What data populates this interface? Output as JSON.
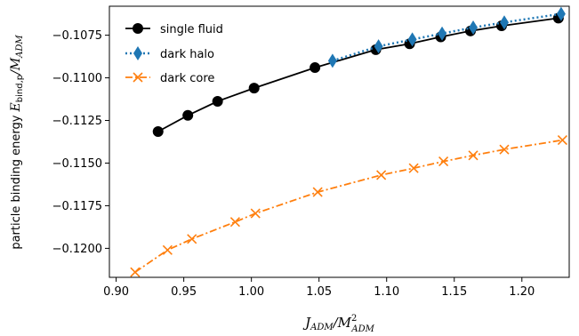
{
  "chart_data": {
    "type": "line",
    "title": "",
    "xlabel": "J_ADM / M_ADM^2",
    "ylabel": "particle binding energy E_bind,p / M_ADM",
    "xlabel_main": "J",
    "xlabel_sub": "ADM",
    "xlabel_den": "/M",
    "xlabel_den_sub": "ADM",
    "xlabel_den_sup": "2",
    "ylabel_prefix": "particle binding energy ",
    "ylabel_E": "E",
    "ylabel_E_sub": "bind,p",
    "ylabel_den": "/M",
    "ylabel_den_sub": "ADM",
    "xlim": [
      0.895,
      1.235
    ],
    "ylim": [
      -0.1217,
      -0.1058
    ],
    "xticks": [
      0.9,
      0.95,
      1.0,
      1.05,
      1.1,
      1.15,
      1.2
    ],
    "xtick_labels": [
      "0.90",
      "0.95",
      "1.00",
      "1.05",
      "1.10",
      "1.15",
      "1.20"
    ],
    "yticks": [
      -0.1075,
      -0.11,
      -0.1125,
      -0.115,
      -0.1175,
      -0.12
    ],
    "ytick_labels": [
      "−0.1075",
      "−0.1100",
      "−0.1125",
      "−0.1150",
      "−0.1175",
      "−0.1200"
    ],
    "legend_position": "top-left",
    "grid": false,
    "series": [
      {
        "name": "single fluid",
        "color": "#000000",
        "linestyle": "solid",
        "marker": "circle",
        "x": [
          0.931,
          0.953,
          0.975,
          1.002,
          1.047,
          1.092,
          1.117,
          1.14,
          1.162,
          1.185,
          1.227
        ],
        "y": [
          -0.11315,
          -0.1122,
          -0.11138,
          -0.1106,
          -0.1094,
          -0.10835,
          -0.108,
          -0.1076,
          -0.10725,
          -0.10695,
          -0.1065
        ]
      },
      {
        "name": "dark halo",
        "color": "#1f77b4",
        "linestyle": "dotted",
        "marker": "diamond",
        "x": [
          1.06,
          1.094,
          1.119,
          1.141,
          1.164,
          1.187,
          1.229
        ],
        "y": [
          -0.109,
          -0.10815,
          -0.10775,
          -0.1074,
          -0.10705,
          -0.10675,
          -0.10625
        ]
      },
      {
        "name": "dark core",
        "color": "#ff7f0e",
        "linestyle": "dashdot",
        "marker": "x",
        "x": [
          0.914,
          0.938,
          0.956,
          0.988,
          1.003,
          1.049,
          1.096,
          1.12,
          1.142,
          1.164,
          1.187,
          1.23
        ],
        "y": [
          -0.1214,
          -0.1201,
          -0.11945,
          -0.11845,
          -0.11795,
          -0.1167,
          -0.1157,
          -0.1153,
          -0.1149,
          -0.11455,
          -0.1142,
          -0.11365
        ]
      }
    ]
  }
}
